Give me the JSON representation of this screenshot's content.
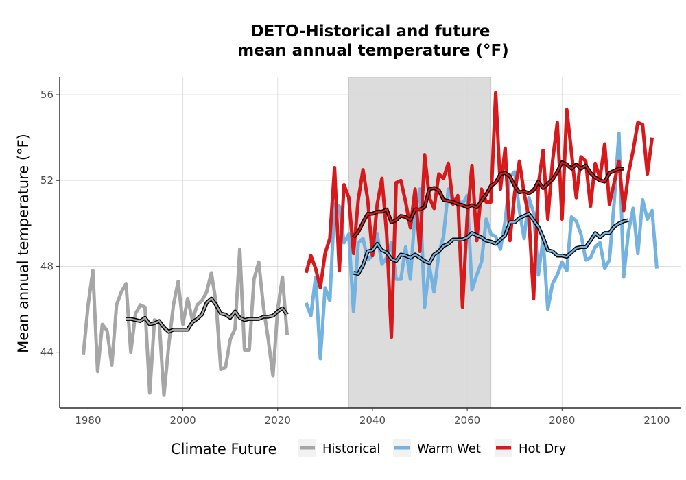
{
  "chart_data": {
    "type": "line",
    "title_line1": "DETO-Historical and future",
    "title_line2": "mean annual temperature (°F)",
    "xlabel": "",
    "ylabel": "Mean annual temperature (°F)",
    "xlim": [
      1974,
      2105
    ],
    "ylim": [
      41.4,
      56.8
    ],
    "x_ticks": [
      1980,
      2000,
      2020,
      2040,
      2060,
      2080,
      2100
    ],
    "y_ticks": [
      44,
      48,
      52,
      56
    ],
    "grid": true,
    "shaded_period": [
      2035,
      2065
    ],
    "shaded_color": "#dcdcdc",
    "legend": {
      "title": "Climate Future",
      "position": "bottom"
    },
    "series": [
      {
        "name": "Historical",
        "color": "#a6a6a6",
        "x_start": 1979,
        "values": [
          43.9,
          46.2,
          47.8,
          43.1,
          45.3,
          45.0,
          43.4,
          46.2,
          46.8,
          47.2,
          44.0,
          45.8,
          46.2,
          46.1,
          42.1,
          45.5,
          45.4,
          42.0,
          44.3,
          46.2,
          47.3,
          45.3,
          46.5,
          45.5,
          46.2,
          46.4,
          46.8,
          47.7,
          46.3,
          43.2,
          43.3,
          44.6,
          45.1,
          48.8,
          44.1,
          44.1,
          47.4,
          48.2,
          46.1,
          44.6,
          42.9,
          46.0,
          47.5,
          44.8
        ],
        "smooth_x_start": 1988,
        "smooth": [
          45.55,
          45.55,
          45.5,
          45.45,
          45.6,
          45.3,
          45.35,
          45.45,
          45.15,
          44.95,
          45.05,
          45.05,
          45.05,
          45.05,
          45.4,
          45.55,
          45.75,
          46.3,
          46.5,
          46.2,
          45.8,
          45.75,
          45.6,
          45.9,
          45.6,
          45.5,
          45.55,
          45.55,
          45.55,
          45.65,
          45.65,
          45.7,
          45.9,
          46.05,
          45.75
        ]
      },
      {
        "name": "Warm Wet",
        "color": "#74b3e0",
        "x_start": 2026,
        "values": [
          46.3,
          45.7,
          47.5,
          43.7,
          47.0,
          46.4,
          50.9,
          50.8,
          49.1,
          49.5,
          45.9,
          49.1,
          49.3,
          48.3,
          48.5,
          49.5,
          48.1,
          48.4,
          49.1,
          47.4,
          47.4,
          48.9,
          47.4,
          50.6,
          51.6,
          46.1,
          48.0,
          46.8,
          48.6,
          49.4,
          51.6,
          51.0,
          51.1,
          50.9,
          51.3,
          46.9,
          47.6,
          48.2,
          50.2,
          49.5,
          49.4,
          48.8,
          50.1,
          52.2,
          52.4,
          50.6,
          49.3,
          51.2,
          50.5,
          47.6,
          49.3,
          46.0,
          47.2,
          47.6,
          48.2,
          47.8,
          50.3,
          50.1,
          49.5,
          48.3,
          48.4,
          48.9,
          49.1,
          47.9,
          48.3,
          51.0,
          54.2,
          47.5,
          49.6,
          50.7,
          48.6,
          51.1,
          50.2,
          50.6,
          47.9
        ],
        "smooth_x_start": 2036,
        "smooth": [
          47.7,
          47.65,
          48.05,
          48.7,
          48.75,
          49.05,
          48.75,
          48.65,
          48.35,
          48.25,
          48.55,
          48.5,
          48.4,
          48.55,
          48.4,
          48.25,
          48.15,
          48.55,
          48.7,
          48.95,
          49.05,
          49.25,
          49.25,
          49.25,
          49.35,
          49.55,
          49.45,
          49.35,
          49.2,
          49.15,
          49.05,
          49.25,
          49.45,
          50.05,
          50.05,
          50.25,
          50.35,
          50.45,
          50.15,
          49.85,
          49.35,
          48.75,
          48.7,
          48.5,
          48.5,
          48.45,
          48.65,
          48.85,
          48.9,
          48.9,
          49.2,
          49.55,
          49.35,
          49.55,
          49.55,
          49.85,
          50.0,
          50.1,
          50.15
        ]
      },
      {
        "name": "Hot Dry",
        "color": "#d7191c",
        "x_start": 2026,
        "values": [
          47.7,
          48.5,
          47.9,
          47.0,
          48.6,
          49.3,
          52.6,
          47.8,
          51.8,
          51.2,
          48.6,
          51.1,
          52.5,
          51.1,
          48.5,
          50.9,
          52.1,
          49.5,
          44.7,
          51.9,
          52.0,
          51.0,
          49.8,
          51.6,
          48.7,
          53.2,
          51.2,
          50.7,
          52.3,
          52.1,
          52.8,
          50.9,
          51.3,
          46.1,
          50.3,
          52.7,
          49.2,
          51.6,
          51.0,
          51.0,
          56.1,
          51.6,
          53.5,
          49.2,
          51.4,
          52.9,
          51.4,
          50.3,
          46.5,
          51.8,
          53.4,
          50.2,
          52.9,
          54.7,
          50.2,
          55.3,
          53.3,
          51.2,
          53.1,
          52.9,
          50.8,
          52.8,
          52.1,
          53.7,
          50.9,
          51.9,
          52.9,
          50.6,
          52.3,
          53.4,
          54.7,
          54.6,
          52.3,
          54.0
        ],
        "smooth_x_start": 2036,
        "smooth": [
          49.35,
          49.6,
          50.05,
          50.45,
          50.45,
          50.55,
          50.55,
          50.65,
          50.05,
          50.15,
          50.35,
          50.3,
          50.15,
          50.65,
          50.65,
          50.75,
          51.6,
          51.65,
          51.55,
          51.1,
          51.05,
          51.0,
          50.9,
          50.85,
          50.75,
          50.85,
          50.75,
          51.05,
          51.35,
          51.75,
          51.9,
          52.3,
          52.35,
          52.2,
          51.75,
          51.45,
          51.5,
          51.4,
          51.55,
          51.95,
          51.65,
          51.85,
          52.05,
          52.4,
          52.85,
          52.75,
          52.55,
          52.75,
          52.55,
          52.7,
          52.35,
          52.15,
          52.0,
          51.95,
          52.35,
          52.45,
          52.55,
          52.55
        ]
      }
    ]
  }
}
